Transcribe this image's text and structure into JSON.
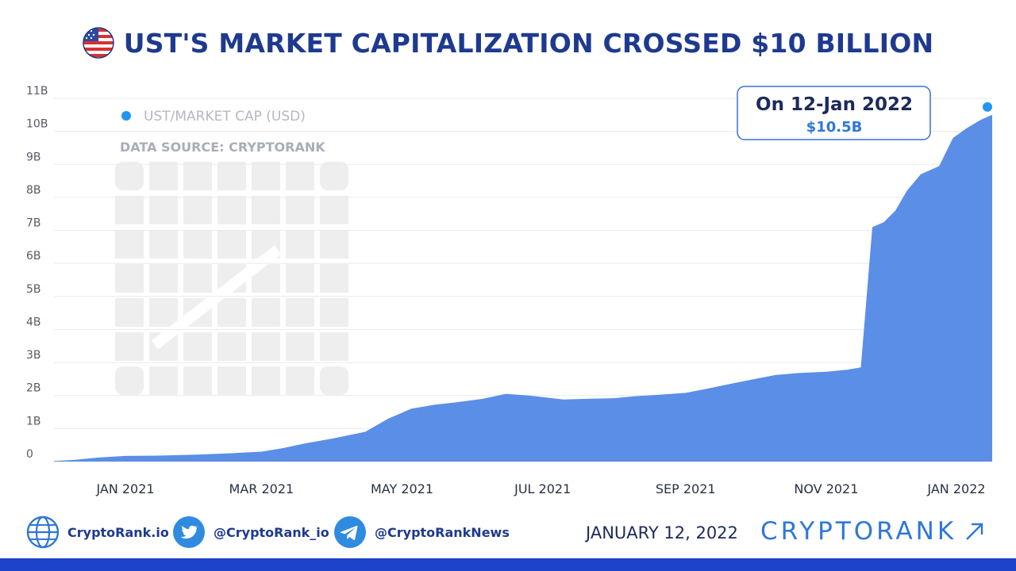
{
  "header": {
    "title": "UST'S MARKET CAPITALIZATION CROSSED $10 BILLION",
    "flag_icon": "us-flag-globe-icon"
  },
  "chart_data": {
    "type": "area",
    "legend": {
      "label": "UST/MARKET CAP (USD)",
      "color": "#2196f3",
      "position": "top-left"
    },
    "source_note": "DATA SOURCE: CRYPTORANK",
    "fill_color": "#5b8ee6",
    "grid": true,
    "ylim": [
      0,
      11000000000
    ],
    "y_ticks": [
      "0",
      "1B",
      "2B",
      "3B",
      "4B",
      "5B",
      "6B",
      "7B",
      "8B",
      "9B",
      "10B",
      "11B"
    ],
    "x_ticks": [
      "JAN 2021",
      "MAR 2021",
      "MAY 2021",
      "JUL 2021",
      "SEP 2021",
      "NOV 2021",
      "JAN 2022"
    ],
    "x_range": [
      "2020-12-01",
      "2022-01-12"
    ],
    "series": [
      {
        "points": [
          [
            "2020-12-01",
            0.02
          ],
          [
            "2020-12-10",
            0.05
          ],
          [
            "2020-12-20",
            0.12
          ],
          [
            "2021-01-01",
            0.17
          ],
          [
            "2021-01-15",
            0.18
          ],
          [
            "2021-02-01",
            0.21
          ],
          [
            "2021-02-15",
            0.25
          ],
          [
            "2021-03-01",
            0.3
          ],
          [
            "2021-03-10",
            0.4
          ],
          [
            "2021-03-20",
            0.55
          ],
          [
            "2021-04-01",
            0.7
          ],
          [
            "2021-04-15",
            0.9
          ],
          [
            "2021-04-25",
            1.3
          ],
          [
            "2021-05-05",
            1.6
          ],
          [
            "2021-05-15",
            1.72
          ],
          [
            "2021-05-25",
            1.8
          ],
          [
            "2021-06-05",
            1.9
          ],
          [
            "2021-06-15",
            2.05
          ],
          [
            "2021-06-25",
            2.0
          ],
          [
            "2021-07-01",
            1.95
          ],
          [
            "2021-07-10",
            1.88
          ],
          [
            "2021-07-20",
            1.9
          ],
          [
            "2021-08-01",
            1.92
          ],
          [
            "2021-08-10",
            1.98
          ],
          [
            "2021-08-20",
            2.02
          ],
          [
            "2021-09-01",
            2.08
          ],
          [
            "2021-09-10",
            2.2
          ],
          [
            "2021-09-20",
            2.35
          ],
          [
            "2021-10-01",
            2.5
          ],
          [
            "2021-10-10",
            2.62
          ],
          [
            "2021-10-20",
            2.68
          ],
          [
            "2021-11-01",
            2.72
          ],
          [
            "2021-11-10",
            2.78
          ],
          [
            "2021-11-16",
            2.85
          ],
          [
            "2021-11-21",
            7.1
          ],
          [
            "2021-11-26",
            7.25
          ],
          [
            "2021-12-01",
            7.6
          ],
          [
            "2021-12-06",
            8.2
          ],
          [
            "2021-12-12",
            8.7
          ],
          [
            "2021-12-20",
            8.95
          ],
          [
            "2021-12-26",
            9.8
          ],
          [
            "2022-01-01",
            10.1
          ],
          [
            "2022-01-07",
            10.35
          ],
          [
            "2022-01-12",
            10.5
          ]
        ],
        "unit": "B"
      }
    ],
    "callout": {
      "title": "On 12-Jan 2022",
      "value": "$10.5B"
    }
  },
  "footer": {
    "website": {
      "label": "CryptoRank.io",
      "icon": "globe-icon"
    },
    "twitter": {
      "label": "@CryptoRank_io",
      "icon": "twitter-icon"
    },
    "telegram": {
      "label": "@CryptoRankNews",
      "icon": "telegram-icon"
    },
    "date": "JANUARY 12, 2022",
    "brand": "CRYPTORANK",
    "brand_icon": "arrow-up-right-icon"
  },
  "colors": {
    "title": "#1e3a8f",
    "accent": "#2e77d8",
    "bottom_bar": "#1c43c9"
  }
}
